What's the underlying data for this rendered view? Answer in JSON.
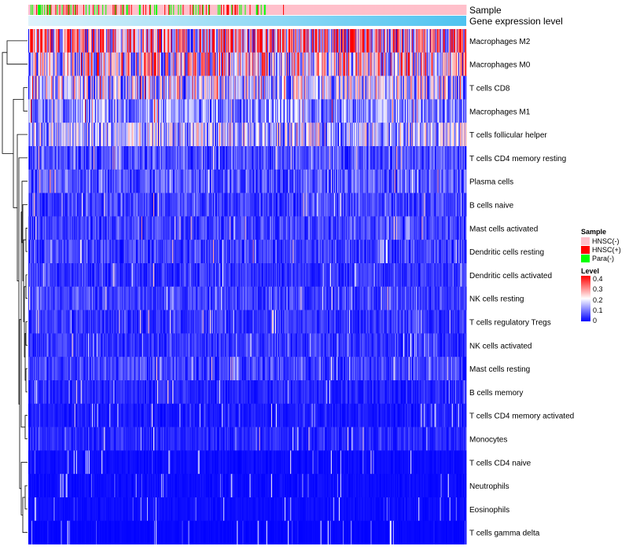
{
  "chart_data": {
    "type": "heatmap",
    "title": "",
    "annotation_tracks": [
      "Sample",
      "Gene expression level"
    ],
    "rows": [
      "Macrophages M2",
      "Macrophages M0",
      "T cells CD8",
      "Macrophages M1",
      "T cells follicular helper",
      "T cells CD4 memory resting",
      "Plasma cells",
      "B cells naive",
      "Mast cells activated",
      "Dendritic cells resting",
      "Dendritic cells activated",
      "NK cells resting",
      "T cells regulatory  Tregs",
      "NK cells activated",
      "Mast cells resting",
      "B cells memory",
      "T cells CD4 memory activated",
      "Monocytes",
      "T cells CD4 naive",
      "Neutrophils",
      "Eosinophils",
      "T cells gamma delta"
    ],
    "row_mean_level": [
      0.24,
      0.2,
      0.16,
      0.11,
      0.14,
      0.06,
      0.07,
      0.05,
      0.05,
      0.05,
      0.04,
      0.05,
      0.04,
      0.04,
      0.05,
      0.03,
      0.02,
      0.03,
      0.01,
      0.01,
      0.01,
      0.005
    ],
    "n_samples": 550,
    "sample_groups": {
      "HNSC(-)": {
        "color": "#ffc0cb",
        "approx_count": 450
      },
      "HNSC(+)": {
        "color": "#ff0000",
        "approx_count": 40
      },
      "Para(-)": {
        "color": "#00ff00",
        "approx_count": 44
      }
    },
    "legend": {
      "sample_title": "Sample",
      "sample_labels": [
        "HNSC(-)",
        "HNSC(+)",
        "Para(-)"
      ],
      "sample_colors": [
        "#ffc0cb",
        "#ff0000",
        "#00ff00"
      ],
      "level_title": "Level",
      "level_ticks": [
        "0.4",
        "0.3",
        "0.2",
        "0.1",
        "0"
      ],
      "level_range": [
        0,
        0.4
      ],
      "level_colors": [
        "#0000ff",
        "#ffffff",
        "#ff0000"
      ]
    }
  }
}
